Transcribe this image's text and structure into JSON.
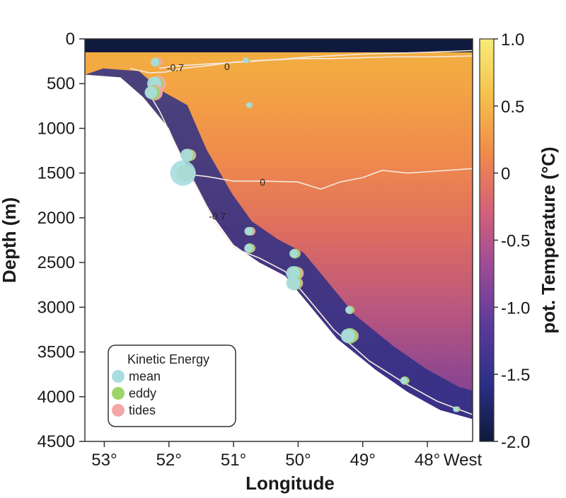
{
  "chart_data": {
    "type": "heatmap",
    "xlabel": "Longitude",
    "ylabel": "Depth (m)",
    "x_ticks": [
      "53°",
      "52°",
      "51°",
      "50°",
      "49°",
      "48°"
    ],
    "x_tick_values": [
      53,
      52,
      51,
      50,
      49,
      48
    ],
    "x_extra_label": "West",
    "xlim": [
      53.3,
      47.3
    ],
    "y_ticks": [
      "0",
      "500",
      "1000",
      "1500",
      "2000",
      "2500",
      "3000",
      "3500",
      "4000",
      "4500"
    ],
    "y_tick_values": [
      0,
      500,
      1000,
      1500,
      2000,
      2500,
      3000,
      3500,
      4000,
      4500
    ],
    "ylim": [
      0,
      4500
    ],
    "colorbar": {
      "label": "pot. Temperature (°C)",
      "ticks": [
        "1.0",
        "0.5",
        "0",
        "-0.5",
        "-1.0",
        "-1.5",
        "-2.0"
      ],
      "tick_values": [
        1.0,
        0.5,
        0,
        -0.5,
        -1.0,
        -1.5,
        -2.0
      ],
      "range": [
        -2.0,
        1.0
      ]
    },
    "bottom_profile": [
      {
        "lon": 53.3,
        "depth": 400
      },
      {
        "lon": 52.75,
        "depth": 430
      },
      {
        "lon": 52.4,
        "depth": 650
      },
      {
        "lon": 52.0,
        "depth": 1000
      },
      {
        "lon": 51.7,
        "depth": 1500
      },
      {
        "lon": 51.3,
        "depth": 2000
      },
      {
        "lon": 51.0,
        "depth": 2300
      },
      {
        "lon": 50.6,
        "depth": 2500
      },
      {
        "lon": 50.2,
        "depth": 2650
      },
      {
        "lon": 49.8,
        "depth": 3000
      },
      {
        "lon": 49.4,
        "depth": 3350
      },
      {
        "lon": 48.8,
        "depth": 3700
      },
      {
        "lon": 48.3,
        "depth": 3950
      },
      {
        "lon": 47.8,
        "depth": 4150
      },
      {
        "lon": 47.3,
        "depth": 4250
      }
    ],
    "contours": [
      {
        "label": "0",
        "points": [
          [
            51.75,
            1510
          ],
          [
            51.4,
            1540
          ],
          [
            51.0,
            1590
          ],
          [
            50.5,
            1590
          ],
          [
            50.0,
            1600
          ],
          [
            49.65,
            1680
          ],
          [
            49.35,
            1600
          ],
          [
            49.0,
            1550
          ],
          [
            48.7,
            1470
          ],
          [
            48.3,
            1500
          ],
          [
            47.9,
            1480
          ],
          [
            47.3,
            1450
          ]
        ]
      },
      {
        "label": "0",
        "points": [
          [
            52.15,
            330
          ],
          [
            51.85,
            300
          ],
          [
            51.4,
            280
          ],
          [
            50.9,
            260
          ],
          [
            50.5,
            240
          ],
          [
            50.0,
            220
          ],
          [
            49.5,
            220
          ],
          [
            49.0,
            210
          ],
          [
            48.5,
            200
          ],
          [
            47.9,
            200
          ],
          [
            47.3,
            190
          ]
        ]
      },
      {
        "label": "-0.7",
        "points": [
          [
            52.35,
            560
          ],
          [
            52.15,
            800
          ],
          [
            51.95,
            1100
          ],
          [
            51.75,
            1400
          ],
          [
            51.5,
            1750
          ],
          [
            51.25,
            2100
          ],
          [
            50.95,
            2350
          ],
          [
            50.6,
            2450
          ],
          [
            50.2,
            2600
          ],
          [
            49.85,
            2900
          ],
          [
            49.45,
            3250
          ],
          [
            48.9,
            3600
          ],
          [
            48.35,
            3850
          ],
          [
            47.85,
            4050
          ],
          [
            47.3,
            4200
          ]
        ]
      },
      {
        "label": "-0.7",
        "points": [
          [
            52.6,
            330
          ],
          [
            52.3,
            380
          ],
          [
            52.05,
            370
          ],
          [
            51.8,
            330
          ],
          [
            51.4,
            300
          ],
          [
            51.0,
            260
          ],
          [
            50.6,
            240
          ],
          [
            50.3,
            230
          ],
          [
            49.8,
            200
          ],
          [
            49.0,
            170
          ],
          [
            48.0,
            150
          ],
          [
            47.3,
            130
          ]
        ]
      }
    ],
    "contour_label_positions": [
      {
        "text": "0",
        "lon": 50.55,
        "depth": 1600
      },
      {
        "text": "0",
        "lon": 51.1,
        "depth": 310
      },
      {
        "text": "-0.7",
        "lon": 51.9,
        "depth": 320
      },
      {
        "text": "-0.7",
        "lon": 51.25,
        "depth": 1980
      }
    ],
    "legend": {
      "title": "Kinetic Energy",
      "items": [
        {
          "name": "mean",
          "color": "#a8dde0"
        },
        {
          "name": "eddy",
          "color": "#9cd66a"
        },
        {
          "name": "tides",
          "color": "#f3a6a6"
        }
      ]
    },
    "kinetic_energy_markers": [
      {
        "lon": 52.2,
        "depth": 260,
        "mean": 6,
        "eddy": 6,
        "tides": 7
      },
      {
        "lon": 52.2,
        "depth": 500,
        "mean": 10,
        "eddy": 10,
        "tides": 11
      },
      {
        "lon": 52.25,
        "depth": 600,
        "mean": 9,
        "eddy": 10,
        "tides": 11
      },
      {
        "lon": 50.8,
        "depth": 240,
        "mean": 4,
        "eddy": 4,
        "tides": 4
      },
      {
        "lon": 50.75,
        "depth": 740,
        "mean": 4,
        "eddy": 4,
        "tides": 4
      },
      {
        "lon": 51.7,
        "depth": 1300,
        "mean": 9,
        "eddy": 9,
        "tides": 8
      },
      {
        "lon": 51.75,
        "depth": 1500,
        "mean": 18,
        "eddy": 12,
        "tides": 9
      },
      {
        "lon": 50.75,
        "depth": 2150,
        "mean": 6,
        "eddy": 6,
        "tides": 6
      },
      {
        "lon": 50.75,
        "depth": 2340,
        "mean": 6,
        "eddy": 7,
        "tides": 6
      },
      {
        "lon": 50.05,
        "depth": 2400,
        "mean": 6,
        "eddy": 7,
        "tides": 6
      },
      {
        "lon": 50.05,
        "depth": 2620,
        "mean": 10,
        "eddy": 10,
        "tides": 9
      },
      {
        "lon": 50.05,
        "depth": 2730,
        "mean": 10,
        "eddy": 10,
        "tides": 8
      },
      {
        "lon": 49.2,
        "depth": 3030,
        "mean": 5,
        "eddy": 6,
        "tides": 5
      },
      {
        "lon": 49.2,
        "depth": 3320,
        "mean": 10,
        "eddy": 11,
        "tides": 9
      },
      {
        "lon": 48.35,
        "depth": 3820,
        "mean": 5,
        "eddy": 6,
        "tides": 5
      },
      {
        "lon": 47.55,
        "depth": 4140,
        "mean": 4,
        "eddy": 4,
        "tides": 4
      }
    ],
    "colors": {
      "colormap": [
        "#0d1a3a",
        "#2b2f86",
        "#5a3a9a",
        "#9a4a98",
        "#d4607a",
        "#f08a4a",
        "#f5c04a",
        "#f7ec7a"
      ],
      "contour_line": "#f5e9e0",
      "surface_band": "#101a3e"
    },
    "grid": false
  }
}
